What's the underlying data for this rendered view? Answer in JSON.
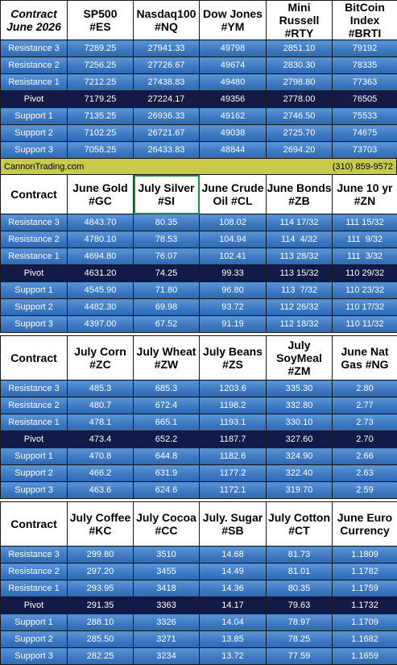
{
  "website": "CannonTrading.com",
  "phone": "(310) 859-9572",
  "sections": [
    {
      "corner_lines": [
        "Contract",
        "June 2026"
      ],
      "corner_italic": true,
      "headers": [
        [
          "SP500",
          "#ES"
        ],
        [
          "Nasdaq100",
          "#NQ"
        ],
        [
          "Dow Jones",
          "#YM"
        ],
        [
          "Mini Russell",
          "#RTY"
        ],
        [
          "BitCoin",
          "Index #BRTI"
        ]
      ],
      "rows": [
        {
          "label": "Resistance 3",
          "values": [
            "7289.25",
            "27941.33",
            "49798",
            "2851.10",
            "79192"
          ]
        },
        {
          "label": "Resistance 2",
          "values": [
            "7256.25",
            "27726.67",
            "49674",
            "2830.30",
            "78335"
          ]
        },
        {
          "label": "Resistance 1",
          "values": [
            "7212.25",
            "27438.83",
            "49480",
            "2798.80",
            "77363"
          ]
        },
        {
          "label": "Pivot",
          "values": [
            "7179.25",
            "27224.17",
            "49356",
            "2778.00",
            "76505"
          ]
        },
        {
          "label": "Support 1",
          "values": [
            "7135.25",
            "26936.33",
            "49162",
            "2746.50",
            "75533"
          ]
        },
        {
          "label": "Support 2",
          "values": [
            "7102.25",
            "26721.67",
            "49038",
            "2725.70",
            "74675"
          ]
        },
        {
          "label": "Support 3",
          "values": [
            "7058.25",
            "26433.83",
            "48844",
            "2694.20",
            "73703"
          ]
        }
      ]
    },
    {
      "corner_lines": [
        "Contract"
      ],
      "corner_italic": false,
      "headers": [
        [
          "June Gold",
          "#GC"
        ],
        [
          "July Silver",
          "#SI"
        ],
        [
          "June Crude",
          "Oil #CL"
        ],
        [
          "June Bonds",
          "#ZB"
        ],
        [
          "June 10 yr",
          "#ZN"
        ]
      ],
      "rows": [
        {
          "label": "Resistance 3",
          "values": [
            "4843.70",
            "80.35",
            "108.02",
            "114 17/32",
            "111 15/32"
          ]
        },
        {
          "label": "Resistance 2",
          "values": [
            "4780.10",
            "78.53",
            "104.94",
            "114  4/32",
            "111  9/32"
          ]
        },
        {
          "label": "Resistance 1",
          "values": [
            "4694.80",
            "76.07",
            "102.41",
            "113 28/32",
            "111  3/32"
          ]
        },
        {
          "label": "Pivot",
          "values": [
            "4631.20",
            "74.25",
            "99.33",
            "113 15/32",
            "110 29/32"
          ]
        },
        {
          "label": "Support 1",
          "values": [
            "4545.90",
            "71.80",
            "96.80",
            "113  7/32",
            "110 23/32"
          ]
        },
        {
          "label": "Support 2",
          "values": [
            "4482.30",
            "69.98",
            "93.72",
            "112 26/32",
            "110 17/32"
          ]
        },
        {
          "label": "Support 3",
          "values": [
            "4397.00",
            "67.52",
            "91.19",
            "112 18/32",
            "110 11/32"
          ]
        }
      ]
    },
    {
      "corner_lines": [
        "Contract"
      ],
      "corner_italic": false,
      "headers": [
        [
          "July Corn",
          "#ZC"
        ],
        [
          "July  Wheat",
          "#ZW"
        ],
        [
          "July Beans",
          "#ZS"
        ],
        [
          "July",
          "SoyMeal",
          "#ZM"
        ],
        [
          "June Nat",
          "Gas #NG"
        ]
      ],
      "rows": [
        {
          "label": "Resistance 3",
          "values": [
            "485.3",
            "685.3",
            "1203.6",
            "335.30",
            "2.80"
          ]
        },
        {
          "label": "Resistance 2",
          "values": [
            "480.7",
            "672.4",
            "1198.2",
            "332.80",
            "2.77"
          ]
        },
        {
          "label": "Resistance 1",
          "values": [
            "478.1",
            "665.1",
            "1193.1",
            "330.10",
            "2.73"
          ]
        },
        {
          "label": "Pivot",
          "values": [
            "473.4",
            "652.2",
            "1187.7",
            "327.60",
            "2.70"
          ]
        },
        {
          "label": "Support 1",
          "values": [
            "470.8",
            "644.8",
            "1182.6",
            "324.90",
            "2.66"
          ]
        },
        {
          "label": "Support 2",
          "values": [
            "466.2",
            "631.9",
            "1177.2",
            "322.40",
            "2.63"
          ]
        },
        {
          "label": "Support 3",
          "values": [
            "463.6",
            "624.6",
            "1172.1",
            "319.70",
            "2.59"
          ]
        }
      ]
    },
    {
      "corner_lines": [
        "Contract"
      ],
      "corner_italic": false,
      "headers": [
        [
          "July Coffee",
          "#KC"
        ],
        [
          "July Cocoa",
          "#CC"
        ],
        [
          "July. Sugar",
          "#SB"
        ],
        [
          "July Cotton",
          "#CT"
        ],
        [
          "June Euro",
          "Currency"
        ]
      ],
      "rows": [
        {
          "label": "Resistance 3",
          "values": [
            "299.80",
            "3510",
            "14.68",
            "81.73",
            "1.1809"
          ]
        },
        {
          "label": "Resistance 2",
          "values": [
            "297.20",
            "3455",
            "14.49",
            "81.01",
            "1.1782"
          ]
        },
        {
          "label": "Resistance 1",
          "values": [
            "293.95",
            "3418",
            "14.36",
            "80.35",
            "1.1759"
          ]
        },
        {
          "label": "Pivot",
          "values": [
            "291.35",
            "3363",
            "14.17",
            "79.63",
            "1.1732"
          ]
        },
        {
          "label": "Support 1",
          "values": [
            "288.10",
            "3326",
            "14.04",
            "78.97",
            "1.1709"
          ]
        },
        {
          "label": "Support 2",
          "values": [
            "285.50",
            "3271",
            "13.85",
            "78.25",
            "1.1682"
          ]
        },
        {
          "label": "Support 3",
          "values": [
            "282.25",
            "3234",
            "13.72",
            "77.59",
            "1.1659"
          ]
        }
      ]
    }
  ],
  "selected_cell": {
    "section": 1,
    "column": 1
  },
  "colors": {
    "row_blue": "#3e79c2",
    "pivot_navy": "#141a48",
    "banner_olive": "#c9c94a",
    "selection_green": "#1e8a3a"
  }
}
